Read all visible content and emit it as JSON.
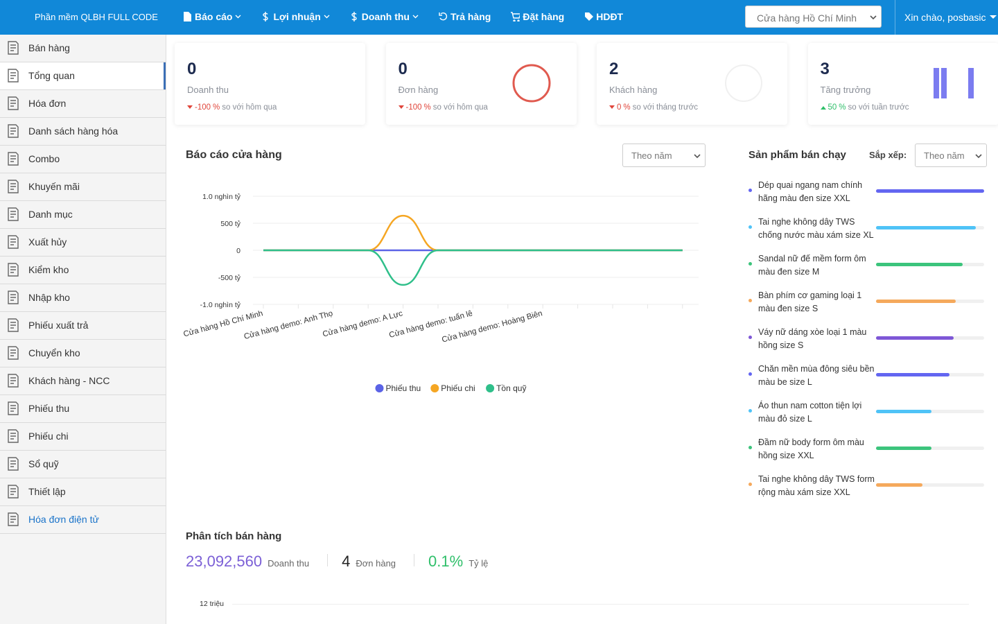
{
  "nav": {
    "brand": "Phần mềm QLBH FULL CODE",
    "menu": [
      "Báo cáo",
      "Lợi nhuận",
      "Doanh thu",
      "Trả hàng",
      "Đặt hàng",
      "HDĐT"
    ],
    "store": "Cửa hàng Hồ Chí Minh",
    "greeting": "Xin chào, posbasic"
  },
  "sidebar": {
    "items": [
      "Bán hàng",
      "Tổng quan",
      "Hóa đơn",
      "Danh sách hàng hóa",
      "Combo",
      "Khuyến mãi",
      "Danh mục",
      "Xuất hủy",
      "Kiểm kho",
      "Nhập kho",
      "Phiếu xuất trả",
      "Chuyển kho",
      "Khách hàng - NCC",
      "Phiếu thu",
      "Phiếu chi",
      "Sổ quỹ",
      "Thiết lập",
      "Hóa đơn điện tử"
    ],
    "active": 1,
    "highlighted": 17
  },
  "stats": [
    {
      "value": 0,
      "label": "Doanh thu",
      "change": -100,
      "unit": "%",
      "note": "so với hôm qua",
      "trend": "down"
    },
    {
      "value": 0,
      "label": "Đơn hàng",
      "change": -100,
      "unit": "%",
      "note": "so với hôm qua",
      "trend": "down"
    },
    {
      "value": 2,
      "label": "Khách hàng",
      "change": 0,
      "unit": "%",
      "note": "so với tháng trước",
      "trend": "down"
    },
    {
      "value": 3,
      "label": "Tăng trưởng",
      "change": 50,
      "unit": "%",
      "note": "so với tuần trước",
      "trend": "up"
    }
  ],
  "store_report": {
    "title": "Báo cáo cửa hàng",
    "filter": "Theo năm",
    "chart_data": {
      "type": "line",
      "categories": [
        "Cửa hàng Hồ Chí Minh",
        null,
        "Cửa hàng demo: Anh Thọ",
        null,
        "Cửa hàng demo: A Lực",
        null,
        "Cửa hàng demo: tuấn lê",
        null,
        "Cửa hàng demo: Hoàng Biên",
        null,
        null,
        null,
        null
      ],
      "ylim": [
        -1000,
        1000
      ],
      "yticks": [
        {
          "value": 1000,
          "label": "1.0 nghìn tỷ"
        },
        {
          "value": 500,
          "label": "500 tỷ"
        },
        0,
        {
          "value": -500,
          "label": "-500 tỷ"
        },
        {
          "value": -1000,
          "label": "-1.0 nghìn tỷ"
        }
      ],
      "grid": true,
      "legend": "bottom",
      "series": [
        {
          "name": "Phiếu thu",
          "color": "#5b63e6",
          "values": [
            0,
            0,
            0,
            0,
            0,
            0,
            0,
            0,
            0,
            0,
            0,
            0,
            0
          ]
        },
        {
          "name": "Phiếu chi",
          "color": "#f5a623",
          "values": [
            0,
            0,
            0,
            0,
            640,
            0,
            0,
            0,
            0,
            0,
            0,
            0,
            0
          ]
        },
        {
          "name": "Tồn quỹ",
          "color": "#2fbf8a",
          "values": [
            0,
            0,
            0,
            0,
            -640,
            0,
            0,
            0,
            0,
            0,
            0,
            0,
            0
          ]
        }
      ]
    }
  },
  "top_products": {
    "title": "Sản phẩm bán chạy",
    "sort_label": "Sắp xếp:",
    "filter": "Theo năm",
    "items": [
      {
        "name": "Dép quai ngang nam chính hãng màu đen size XXL",
        "value": 100,
        "color": "#6366f1"
      },
      {
        "name": "Tai nghe không dây TWS chống nước màu xám size XL",
        "value": 92,
        "color": "#4fc3f7"
      },
      {
        "name": "Sandal nữ đế mềm form ôm màu đen size M",
        "value": 80,
        "color": "#3cc47c"
      },
      {
        "name": "Bàn phím cơ gaming loại 1 màu đen size S",
        "value": 74,
        "color": "#f5a95c"
      },
      {
        "name": "Váy nữ dáng xòe loại 1 màu hồng size S",
        "value": 72,
        "color": "#7e57d6"
      },
      {
        "name": "Chăn mền mùa đông siêu bền màu be size L",
        "value": 68,
        "color": "#6366f1"
      },
      {
        "name": "Áo thun nam cotton tiện lợi màu đỏ size L",
        "value": 51,
        "color": "#4fc3f7"
      },
      {
        "name": "Đầm nữ body form ôm màu hồng size XXL",
        "value": 51,
        "color": "#3cc47c"
      },
      {
        "name": "Tai nghe không dây TWS form rộng màu xám size XXL",
        "value": 43,
        "color": "#f5a95c"
      }
    ]
  },
  "sales_analysis": {
    "title": "Phân tích bán hàng",
    "revenue": {
      "value": "23,092,560",
      "label": "Doanh thu"
    },
    "orders": {
      "value": 4,
      "label": "Đơn hàng"
    },
    "rate": {
      "value": "0.1%",
      "label": "Tỷ lệ"
    },
    "chart_ytick": "12 triệu"
  }
}
